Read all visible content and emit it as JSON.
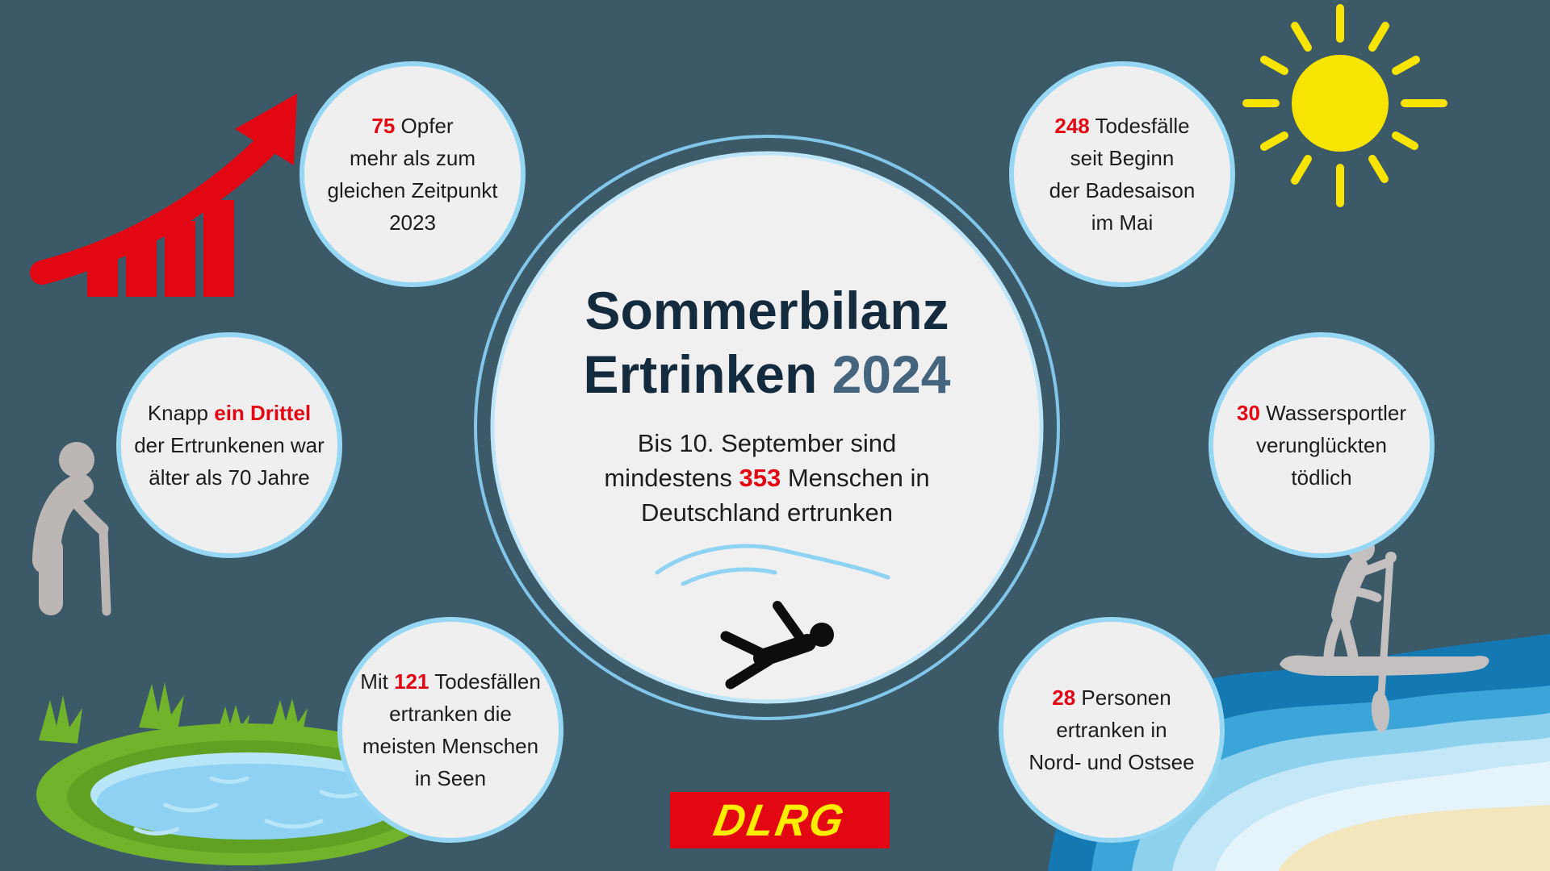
{
  "colors": {
    "background": "#3c5968",
    "bubble_fill": "#f0efef",
    "bubble_border": "#96d7f4",
    "accent_red": "#e30613",
    "title_navy": "#142a3d",
    "year_steel": "#44657d",
    "sun_yellow": "#f8e403",
    "logo_red": "#e30613",
    "logo_yellow": "#ffed00",
    "figure_gray": "#bcb6b5",
    "lake_green": "#71b42c",
    "water_blue": "#8ed1f2",
    "sea_dark_blue": "#1478b3",
    "sand": "#f3e5bc"
  },
  "center": {
    "title_line1": [
      {
        "t": "Sommerbilanz"
      }
    ],
    "title_line2": [
      {
        "t": "Ertrinken "
      },
      {
        "t": "2024",
        "c": "steel"
      }
    ],
    "subtitle_lines": [
      [
        {
          "t": "Bis 10. September sind"
        }
      ],
      [
        {
          "t": "mindestens "
        },
        {
          "t": "353",
          "c": "red"
        },
        {
          "t": " Menschen in"
        }
      ],
      [
        {
          "t": "Deutschland ertrunken"
        }
      ]
    ]
  },
  "bubbles": [
    {
      "id": "victims-increase",
      "lines": [
        [
          {
            "t": "75",
            "c": "red"
          },
          {
            "t": " Opfer"
          }
        ],
        [
          {
            "t": "mehr als zum"
          }
        ],
        [
          {
            "t": "gleichen Zeitpunkt"
          }
        ],
        [
          {
            "t": "2023"
          }
        ]
      ]
    },
    {
      "id": "deaths-since-bathing-season",
      "lines": [
        [
          {
            "t": "248",
            "c": "red"
          },
          {
            "t": " Todesfälle"
          }
        ],
        [
          {
            "t": "seit Beginn"
          }
        ],
        [
          {
            "t": "der Badesaison"
          }
        ],
        [
          {
            "t": "im Mai"
          }
        ]
      ]
    },
    {
      "id": "elderly-share",
      "lines": [
        [
          {
            "t": "Knapp "
          },
          {
            "t": "ein Drittel",
            "c": "red"
          }
        ],
        [
          {
            "t": "der Ertrunkenen war"
          }
        ],
        [
          {
            "t": "älter als 70 Jahre"
          }
        ]
      ]
    },
    {
      "id": "watersport-deaths",
      "lines": [
        [
          {
            "t": "30",
            "c": "red"
          },
          {
            "t": " Wassersportler"
          }
        ],
        [
          {
            "t": "verunglückten"
          }
        ],
        [
          {
            "t": "tödlich"
          }
        ]
      ]
    },
    {
      "id": "lake-deaths",
      "lines": [
        [
          {
            "t": "Mit "
          },
          {
            "t": "121",
            "c": "red"
          },
          {
            "t": " Todesfällen"
          }
        ],
        [
          {
            "t": "ertranken die"
          }
        ],
        [
          {
            "t": "meisten Menschen"
          }
        ],
        [
          {
            "t": "in Seen"
          }
        ]
      ]
    },
    {
      "id": "north-baltic-sea-deaths",
      "lines": [
        [
          {
            "t": "28",
            "c": "red"
          },
          {
            "t": " Personen"
          }
        ],
        [
          {
            "t": "ertranken in"
          }
        ],
        [
          {
            "t": "Nord- und Ostsee"
          }
        ]
      ]
    }
  ],
  "logo": {
    "text": "DLRG"
  },
  "icons": [
    "growth-arrow-chart-icon",
    "sun-icon",
    "elderly-person-with-cane-icon",
    "lake-graphic",
    "wave-icon",
    "drowning-person-icon",
    "sea-beach-graphic",
    "stand-up-paddler-icon"
  ]
}
